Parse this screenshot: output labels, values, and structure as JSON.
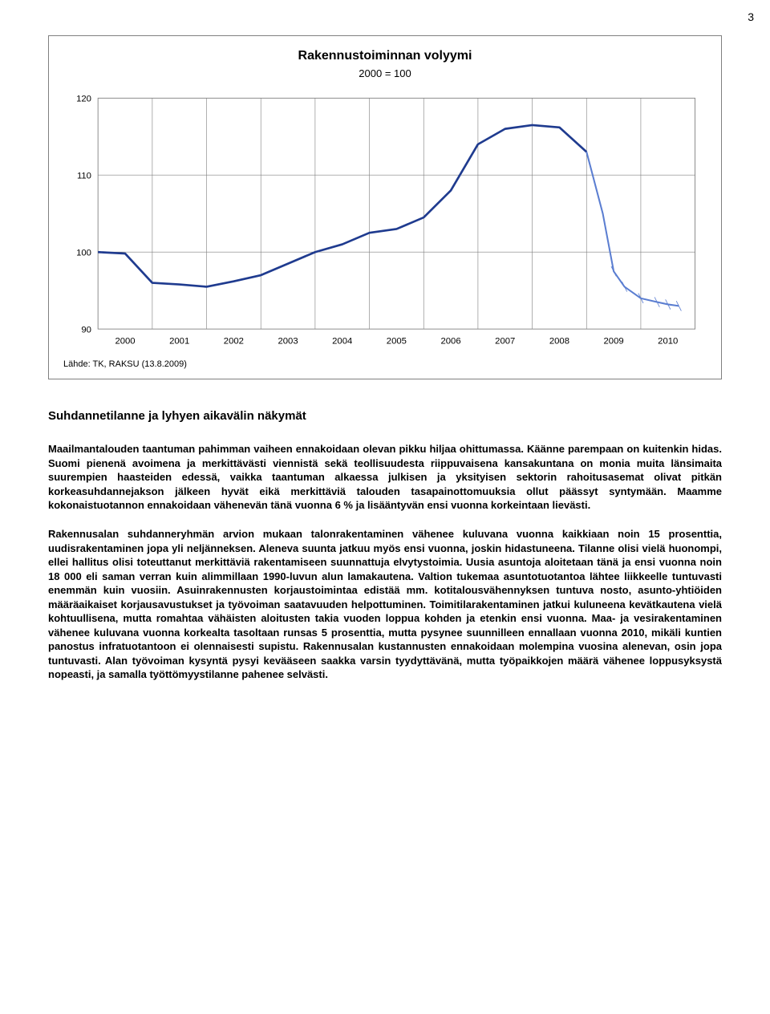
{
  "page_number": "3",
  "chart": {
    "type": "line",
    "title": "Rakennustoiminnan volyymi",
    "subtitle": "2000 = 100",
    "source": "Lähde: TK, RAKSU (13.8.2009)",
    "x_labels": [
      "2000",
      "2001",
      "2002",
      "2003",
      "2004",
      "2005",
      "2006",
      "2007",
      "2008",
      "2009",
      "2010"
    ],
    "y_ticks": [
      90,
      100,
      110,
      120
    ],
    "ylim": [
      90,
      120
    ],
    "series_main": {
      "color": "#1f3b8f",
      "width": 2.6,
      "points": [
        [
          2000.0,
          100.0
        ],
        [
          2000.5,
          99.8
        ],
        [
          2001.0,
          96.0
        ],
        [
          2001.5,
          95.8
        ],
        [
          2002.0,
          95.5
        ],
        [
          2002.5,
          96.2
        ],
        [
          2003.0,
          97.0
        ],
        [
          2003.5,
          98.5
        ],
        [
          2004.0,
          100.0
        ],
        [
          2004.5,
          101.0
        ],
        [
          2005.0,
          102.5
        ],
        [
          2005.5,
          103.0
        ],
        [
          2006.0,
          104.5
        ],
        [
          2006.5,
          108.0
        ],
        [
          2007.0,
          114.0
        ],
        [
          2007.5,
          116.0
        ],
        [
          2008.0,
          116.5
        ],
        [
          2008.5,
          116.2
        ],
        [
          2009.0,
          113.0
        ]
      ]
    },
    "series_forecast": {
      "color": "#5b7ed1",
      "width": 2.0,
      "points": [
        [
          2009.0,
          113.0
        ],
        [
          2009.3,
          105.0
        ],
        [
          2009.5,
          97.5
        ],
        [
          2009.7,
          95.5
        ],
        [
          2010.0,
          94.0
        ],
        [
          2010.3,
          93.5
        ],
        [
          2010.5,
          93.2
        ],
        [
          2010.7,
          93.0
        ]
      ]
    },
    "grid_color": "#808080",
    "grid_width": 0.6,
    "background": "#ffffff",
    "tick_fontsize": 11
  },
  "section_heading": "Suhdannetilanne ja lyhyen aikavälin näkymät",
  "paragraph1": "Maailmantalouden taantuman pahimman vaiheen ennakoidaan olevan pikku hiljaa ohittumassa. Käänne parempaan on kuitenkin hidas. Suomi pienenä avoimena ja merkittävästi viennistä sekä teollisuudesta riippuvaisena kansakuntana on monia muita länsimaita suurempien haasteiden edessä, vaikka taantuman alkaessa julkisen ja yksityisen sektorin rahoitusasemat olivat pitkän korkeasuhdannejakson jälkeen hyvät eikä merkittäviä talouden tasapainottomuuksia ollut päässyt syntymään. Maamme kokonaistuotannon ennakoidaan vähenevän tänä vuonna 6 % ja lisääntyvän ensi vuonna korkeintaan lievästi.",
  "paragraph2": "Rakennusalan suhdanneryhmän arvion mukaan talonrakentaminen vähenee kuluvana vuonna kaikkiaan noin 15 prosenttia, uudisrakentaminen jopa yli neljänneksen. Aleneva suunta jatkuu myös ensi vuonna, joskin hidastuneena.  Tilanne olisi vielä huonompi, ellei hallitus olisi toteuttanut merkittäviä rakentamiseen suunnattuja elvytystoimia. Uusia asuntoja aloitetaan tänä ja ensi vuonna noin 18 000 eli saman verran kuin alimmillaan 1990-luvun alun lamakautena. Valtion tukemaa asuntotuotantoa lähtee liikkeelle tuntuvasti enemmän kuin vuosiin.  Asuinrakennusten korjaustoimintaa edistää mm. kotitalousvähennyksen tuntuva nosto, asunto-yhtiöiden määräaikaiset korjausavustukset ja työvoiman saatavuuden helpottuminen. Toimitilarakentaminen jatkui kuluneena kevätkautena vielä kohtuullisena, mutta romahtaa vähäisten aloitusten takia vuoden loppua kohden ja etenkin ensi vuonna. Maa- ja vesirakentaminen vähenee kuluvana vuonna korkealta tasoltaan runsas 5 prosenttia, mutta pysynee suunnilleen ennallaan vuonna 2010, mikäli kuntien panostus infratuotantoon ei olennaisesti supistu. Rakennusalan kustannusten ennakoidaan molempina vuosina alenevan, osin jopa tuntuvasti. Alan työvoiman kysyntä pysyi kevääseen saakka varsin tyydyttävänä, mutta työpaikkojen määrä vähenee loppusyksystä nopeasti, ja samalla työttömyystilanne pahenee selvästi."
}
